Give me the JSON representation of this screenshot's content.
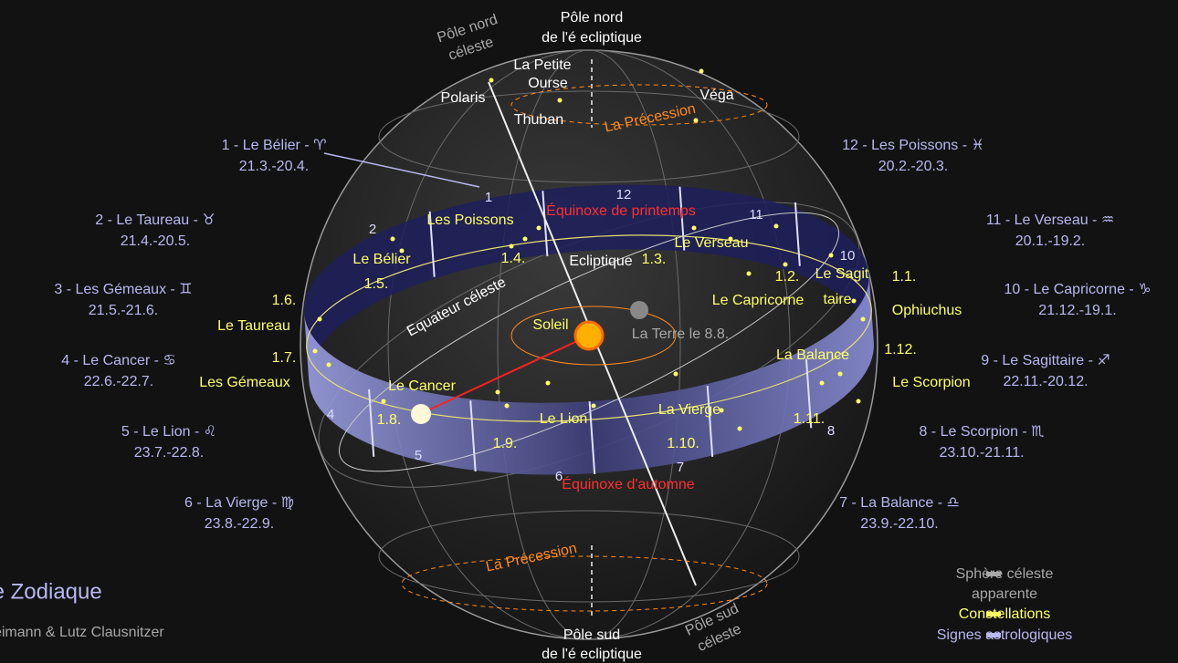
{
  "title": "Le Zodiaque",
  "copyright": "© Steffen Reimann & Lutz Clausnitzer",
  "poles": {
    "north_celestial": [
      "Pôle nord",
      "céleste"
    ],
    "north_ecliptic": [
      "Pôle nord",
      "de l'é ecliptique"
    ],
    "south_ecliptic": [
      "Pôle sud",
      "de l'é ecliptique"
    ],
    "south_celestial": [
      "Pôle sud",
      "céleste"
    ]
  },
  "stars": {
    "petite_ourse": [
      "La Petite",
      "Ourse"
    ],
    "polaris": "Polaris",
    "thuban": "Thuban",
    "vega": "Véga"
  },
  "precession": [
    "La Précession",
    "La Précession"
  ],
  "equinoxes": [
    "Équinoxe de printemps",
    "Équinoxe d'automne"
  ],
  "ecliptic": "Ecliptique",
  "equator": "Equateur céleste",
  "sun": "Soleil",
  "earth": "La Terre le 8.8.",
  "signs": [
    {
      "name": "1 - Le Bélier - ♈",
      "dates": "21.3.-20.4."
    },
    {
      "name": "2 - Le Taureau - ♉",
      "dates": "21.4.-20.5."
    },
    {
      "name": "3 - Les Gémeaux - ♊",
      "dates": "21.5.-21.6."
    },
    {
      "name": "4 - Le Cancer - ♋",
      "dates": "22.6.-22.7."
    },
    {
      "name": "5 - Le Lion - ♌",
      "dates": "23.7.-22.8."
    },
    {
      "name": "6 - La Vierge - ♍",
      "dates": "23.8.-22.9."
    },
    {
      "name": "7 - La Balance - ♎",
      "dates": "23.9.-22.10."
    },
    {
      "name": "8 - Le Scorpion - ♏",
      "dates": "23.10.-21.11."
    },
    {
      "name": "9 - Le Sagittaire - ♐",
      "dates": "22.11.-20.12."
    },
    {
      "name": "10 - Le Capricorne - ♑",
      "dates": "21.12.-19.1."
    },
    {
      "name": "11 - Le Verseau - ♒",
      "dates": "20.1.-19.2."
    },
    {
      "name": "12 - Les Poissons - ♓",
      "dates": "20.2.-20.3."
    }
  ],
  "band_numbers": [
    "1",
    "2",
    "4",
    "5",
    "6",
    "7",
    "8",
    "10",
    "11",
    "12"
  ],
  "constellations": [
    "Les Poissons",
    "Le Bélier",
    "Le Taureau",
    "Les Gémeaux",
    "Le Cancer",
    "Le Lion",
    "La Vierge",
    "La Balance",
    "Le Scorpion",
    "Ophiuchus",
    "Le Sagit",
    "taire",
    "Le Capricorne",
    "Le Verseau"
  ],
  "dates": [
    "1.4.",
    "1.5.",
    "1.6.",
    "1.7.",
    "1.8.",
    "1.9.",
    "1.10.",
    "1.11.",
    "1.12.",
    "1.1.",
    "1.2.",
    "1.3."
  ],
  "legend": {
    "sphere": [
      "Sphère céleste",
      "apparente"
    ],
    "constellations": "Constellations",
    "signs": "Signes astrologiques"
  }
}
